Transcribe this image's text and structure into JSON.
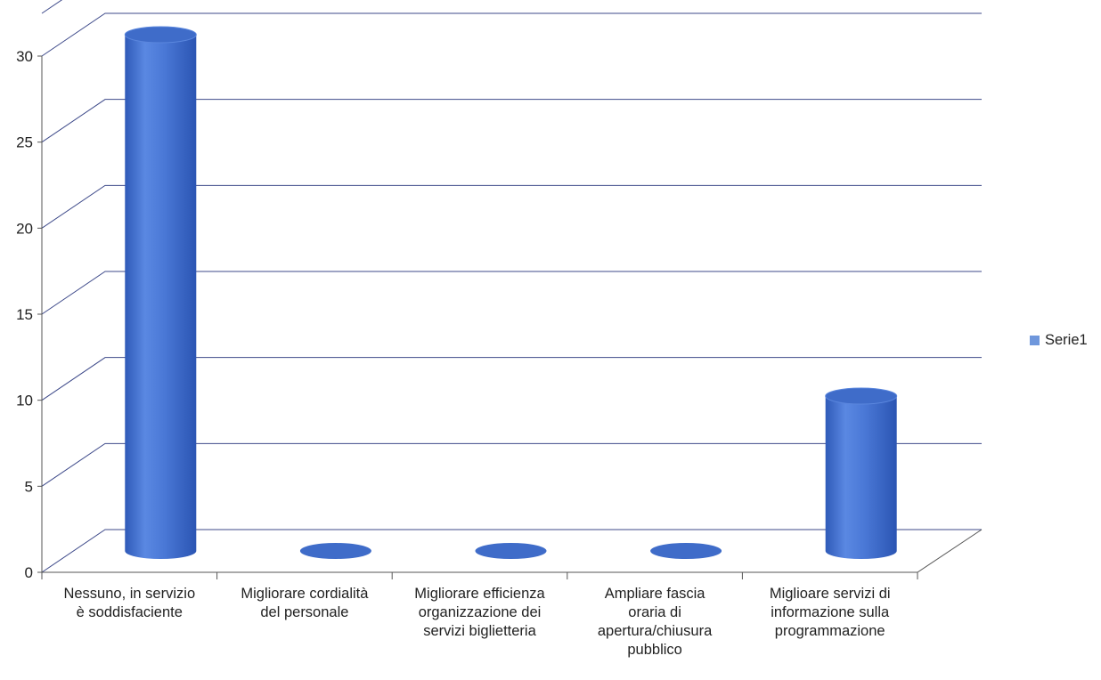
{
  "chart_data": {
    "type": "bar",
    "style": "3d-cylinder",
    "categories": [
      [
        "Nessuno, in servizio",
        "è soddisfaciente"
      ],
      [
        "Migliorare cordialità",
        "del personale"
      ],
      [
        "Migliorare efficienza",
        "organizzazione dei",
        "servizi biglietteria"
      ],
      [
        "Ampliare fascia",
        "oraria di",
        "apertura/chiusura",
        "pubblico"
      ],
      [
        "Miglioare servizi di",
        "informazione sulla",
        "programmazione"
      ]
    ],
    "series": [
      {
        "name": "Serie1",
        "values": [
          30,
          0,
          0,
          0,
          9
        ]
      }
    ],
    "ylim": [
      0,
      30
    ],
    "yticks": [
      "0",
      "5",
      "10",
      "15",
      "20",
      "25",
      "30"
    ],
    "ytick_values": [
      0,
      5,
      10,
      15,
      20,
      25,
      30
    ],
    "grid": true,
    "legend_position": "right",
    "colors": {
      "bar": "#4a78d6",
      "bar_dark": "#2b55b3",
      "bar_light": "#8cb0f0",
      "bar_top": "#3f6cc9",
      "grid": "#3e4a8a",
      "axis": "#555555",
      "legend_swatch": "#6f97dc"
    }
  }
}
